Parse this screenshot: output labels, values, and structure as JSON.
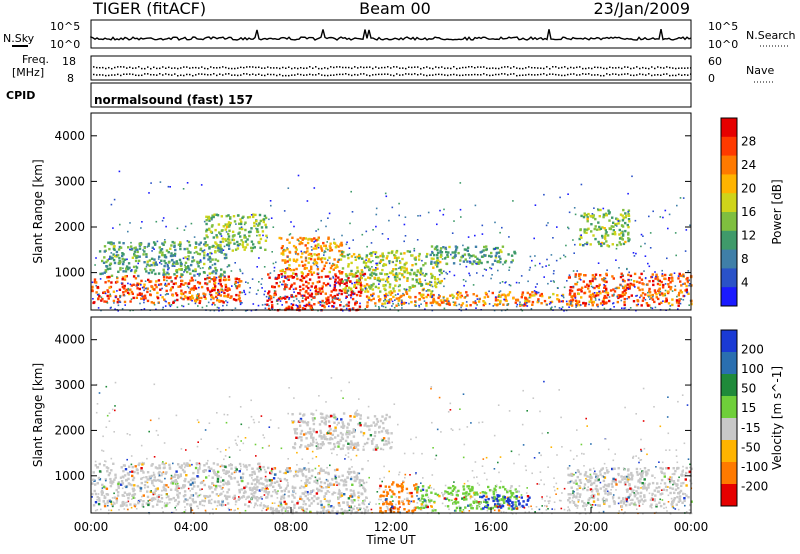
{
  "header": {
    "radar": "TIGER (fitACF)",
    "beam": "Beam 00",
    "date": "23/Jan/2009"
  },
  "strip_labels": {
    "nsky": "N.Sky",
    "nsearch": "N.Search",
    "freq_line1": "Freq.",
    "freq_line2": "[MHz]",
    "nave": "Nave",
    "cpid": "CPID",
    "cpid_value": "normalsound (fast) 157",
    "noise_left_top": "10^5",
    "noise_left_bottom": "10^0",
    "noise_right_top": "10^5",
    "noise_right_bottom": "10^0",
    "freq_top": "18",
    "freq_bottom": "8",
    "nave_top": "60",
    "nave_bottom": "0"
  },
  "chart_data": [
    {
      "type": "heatmap",
      "name": "power",
      "ylabel": "Slant Range [km]",
      "yticks": [
        "1000",
        "2000",
        "3000",
        "4000"
      ],
      "ylim": [
        180,
        4500
      ],
      "colorbar_label": "Power [dB]",
      "colorbar_ticks": [
        "4",
        "8",
        "12",
        "16",
        "20",
        "24",
        "28"
      ],
      "colorbar_colors": [
        "#1a1aff",
        "#2a52c8",
        "#3f7fa8",
        "#3f9a6a",
        "#7fbf3f",
        "#cfd41a",
        "#ffb400",
        "#ff7a00",
        "#ff3a00",
        "#e60000"
      ],
      "regions": [
        {
          "t0": 0.0,
          "t1": 6.0,
          "r0": 350,
          "r1": 950,
          "level": 0.85
        },
        {
          "t0": 0.3,
          "t1": 5.5,
          "r0": 950,
          "r1": 1700,
          "level": 0.35
        },
        {
          "t0": 4.5,
          "t1": 7.0,
          "r0": 1500,
          "r1": 2300,
          "level": 0.45
        },
        {
          "t0": 7.0,
          "t1": 11.0,
          "r0": 200,
          "r1": 1000,
          "level": 0.95
        },
        {
          "t0": 7.5,
          "t1": 10.0,
          "r0": 1000,
          "r1": 1800,
          "level": 0.7
        },
        {
          "t0": 10.0,
          "t1": 14.0,
          "r0": 600,
          "r1": 1500,
          "level": 0.5
        },
        {
          "t0": 11.0,
          "t1": 20.0,
          "r0": 300,
          "r1": 600,
          "level": 0.75
        },
        {
          "t0": 13.5,
          "t1": 17.0,
          "r0": 1200,
          "r1": 1600,
          "level": 0.35
        },
        {
          "t0": 19.0,
          "t1": 24.0,
          "r0": 300,
          "r1": 1000,
          "level": 0.85
        },
        {
          "t0": 19.5,
          "t1": 21.5,
          "r0": 1600,
          "r1": 2400,
          "level": 0.45
        }
      ]
    },
    {
      "type": "heatmap",
      "name": "velocity",
      "ylabel": "Slant Range [km]",
      "yticks": [
        "1000",
        "2000",
        "3000",
        "4000"
      ],
      "ylim": [
        180,
        4500
      ],
      "xticks": [
        "00:00",
        "04:00",
        "08:00",
        "12:00",
        "16:00",
        "20:00",
        "00:00"
      ],
      "xlabel": "Time UT",
      "xlim": [
        0,
        24
      ],
      "colorbar_label": "Velocity [m s^-1]",
      "colorbar_ticks": [
        "200",
        "100",
        "50",
        "15",
        "-15",
        "-50",
        "-100",
        "-200"
      ],
      "colorbar_colors": [
        "#1a3ad4",
        "#2a6fb0",
        "#1f8a3a",
        "#6fcf3a",
        "#c8c8c8",
        "#ffb400",
        "#ff7a00",
        "#e60000"
      ],
      "regions": [
        {
          "t0": 0.0,
          "t1": 7.0,
          "r0": 350,
          "r1": 1300,
          "class": "ground"
        },
        {
          "t0": 7.0,
          "t1": 11.0,
          "r0": 200,
          "r1": 1200,
          "class": "ground"
        },
        {
          "t0": 8.0,
          "t1": 12.0,
          "r0": 1600,
          "r1": 2400,
          "class": "ground"
        },
        {
          "t0": 11.5,
          "t1": 13.0,
          "r0": 200,
          "r1": 900,
          "class": "toward"
        },
        {
          "t0": 13.0,
          "t1": 17.0,
          "r0": 250,
          "r1": 800,
          "class": "away"
        },
        {
          "t0": 15.5,
          "t1": 17.5,
          "r0": 300,
          "r1": 600,
          "class": "fastaway"
        },
        {
          "t0": 19.0,
          "t1": 24.0,
          "r0": 350,
          "r1": 1200,
          "class": "ground"
        }
      ]
    }
  ]
}
